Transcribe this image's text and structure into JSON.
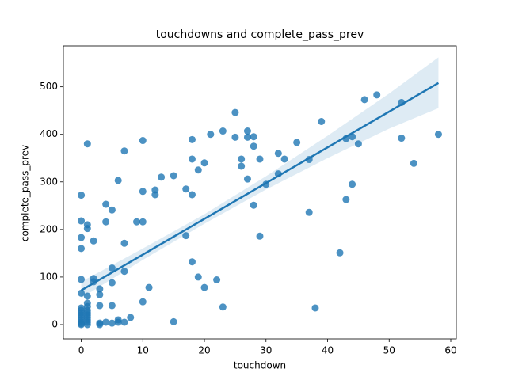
{
  "chart_data": {
    "type": "scatter",
    "title": "touchdowns and complete_pass_prev",
    "xlabel": "touchdown",
    "ylabel": "complete_pass_prev",
    "color": "#1f77b4",
    "x": [
      0,
      0,
      0,
      0,
      0,
      0,
      0,
      0,
      0,
      0,
      0,
      0,
      0,
      0,
      0,
      1,
      1,
      1,
      1,
      1,
      1,
      1,
      1,
      1,
      1,
      1,
      1,
      1,
      2,
      2,
      2,
      3,
      3,
      3,
      3,
      3,
      4,
      4,
      4,
      5,
      5,
      5,
      5,
      5,
      6,
      6,
      6,
      7,
      7,
      7,
      7,
      8,
      9,
      10,
      10,
      10,
      10,
      11,
      12,
      12,
      13,
      15,
      15,
      17,
      17,
      18,
      18,
      18,
      18,
      19,
      19,
      20,
      20,
      21,
      22,
      23,
      23,
      25,
      25,
      26,
      26,
      27,
      27,
      27,
      28,
      28,
      28,
      29,
      29,
      30,
      32,
      32,
      33,
      35,
      37,
      37,
      38,
      39,
      42,
      43,
      43,
      44,
      44,
      45,
      46,
      48,
      52,
      52,
      54,
      58
    ],
    "values": [
      272,
      218,
      183,
      160,
      95,
      66,
      35,
      30,
      25,
      20,
      15,
      10,
      5,
      2,
      0,
      380,
      210,
      202,
      60,
      45,
      38,
      30,
      25,
      20,
      15,
      10,
      5,
      0,
      176,
      97,
      90,
      75,
      63,
      40,
      3,
      0,
      253,
      216,
      5,
      241,
      119,
      88,
      40,
      3,
      303,
      10,
      5,
      365,
      171,
      112,
      5,
      15,
      216,
      387,
      280,
      216,
      48,
      78,
      283,
      273,
      310,
      313,
      6,
      285,
      187,
      389,
      348,
      273,
      132,
      325,
      100,
      340,
      78,
      400,
      94,
      407,
      37,
      446,
      394,
      348,
      333,
      407,
      394,
      306,
      395,
      375,
      251,
      348,
      186,
      295,
      360,
      317,
      348,
      383,
      347,
      236,
      35,
      427,
      151,
      391,
      263,
      395,
      295,
      380,
      473,
      483,
      467,
      392,
      339,
      400
    ],
    "regression": {
      "x": [
        0,
        58
      ],
      "values": [
        72,
        508
      ]
    },
    "band": {
      "x": [
        0,
        10,
        20,
        30,
        40,
        50,
        58
      ],
      "lower": [
        56,
        136,
        212,
        284,
        350,
        412,
        455
      ],
      "upper": [
        90,
        160,
        232,
        312,
        397,
        486,
        562
      ]
    },
    "xlim": [
      -2.9,
      60.9
    ],
    "ylim": [
      -30,
      586
    ],
    "xticks": [
      0,
      10,
      20,
      30,
      40,
      50,
      60
    ],
    "yticks": [
      0,
      100,
      200,
      300,
      400,
      500
    ]
  }
}
